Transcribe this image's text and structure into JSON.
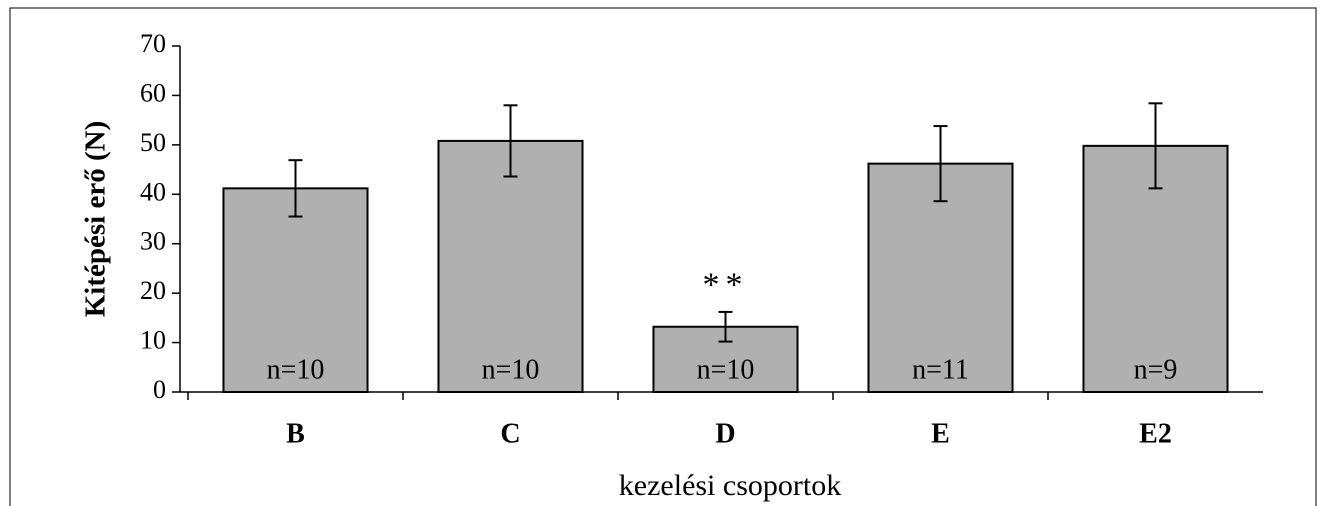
{
  "chart_data": {
    "type": "bar",
    "ylabel": "Kitépési erő (N)",
    "xlabel": "kezelési csoportok",
    "categories": [
      "B",
      "C",
      "D",
      "E",
      "E2"
    ],
    "values": [
      41.2,
      50.8,
      13.2,
      46.2,
      49.8
    ],
    "errors": [
      5.7,
      7.2,
      3.0,
      7.6,
      8.6
    ],
    "n_labels": [
      "n=10",
      "n=10",
      "n=10",
      "n=11",
      "n=9"
    ],
    "annotations": [
      {
        "category": "D",
        "text": "**"
      }
    ],
    "color": "#b0b0b0",
    "ylim": [
      0,
      70
    ],
    "yticks": [
      0,
      10,
      20,
      30,
      40,
      50,
      60,
      70
    ],
    "grid": false
  }
}
